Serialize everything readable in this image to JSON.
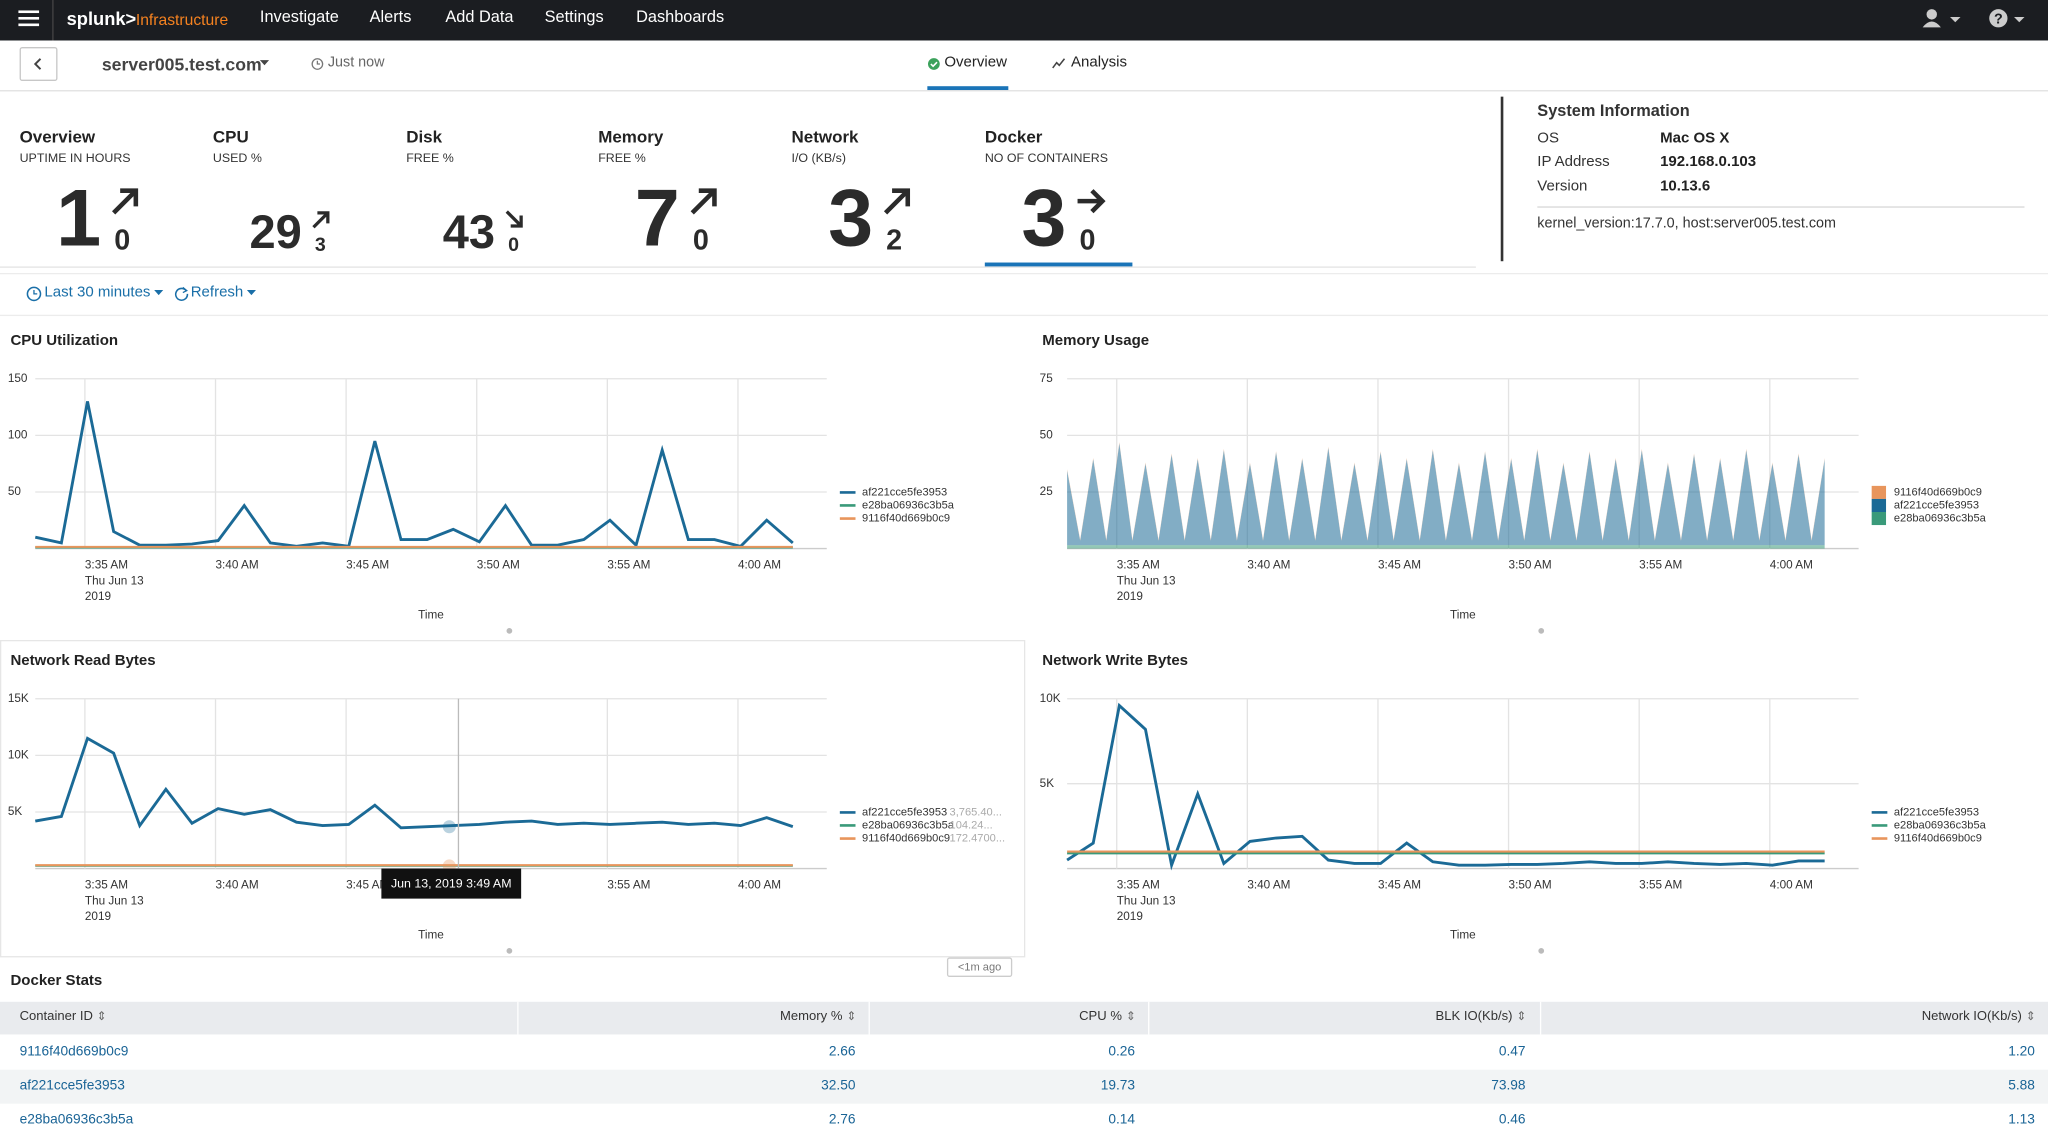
{
  "nav": {
    "logo": "splunk>",
    "product": "Infrastructure",
    "items": [
      "Investigate",
      "Alerts",
      "Add Data",
      "Settings",
      "Dashboards"
    ]
  },
  "header": {
    "host": "server005.test.com",
    "updated": "Just now",
    "tabs": [
      "Overview",
      "Analysis"
    ]
  },
  "kpis": [
    {
      "title": "Overview",
      "subtitle": "UPTIME IN HOURS",
      "value": 1,
      "delta": 0
    },
    {
      "title": "CPU",
      "subtitle": "USED %",
      "value": 29,
      "delta": 3
    },
    {
      "title": "Disk",
      "subtitle": "FREE %",
      "value": 43,
      "delta": 0
    },
    {
      "title": "Memory",
      "subtitle": "FREE %",
      "value": 7,
      "delta": 0
    },
    {
      "title": "Network",
      "subtitle": "I/O (KB/s)",
      "value": 3,
      "delta": 2
    },
    {
      "title": "Docker",
      "subtitle": "NO OF CONTAINERS",
      "value": 3,
      "delta": 0
    }
  ],
  "system_info": {
    "title": "System Information",
    "rows": [
      [
        "OS",
        "Mac OS X"
      ],
      [
        "IP Address",
        "192.168.0.103"
      ],
      [
        "Version",
        "10.13.6"
      ]
    ],
    "details": "kernel_version:17.7.0, host:server005.test.com"
  },
  "toolbar": {
    "time_range": "Last 30 minutes",
    "refresh": "Refresh"
  },
  "chart_data": [
    {
      "type": "line",
      "title": "CPU Utilization",
      "x_label": "Time",
      "x_sublabels": [
        "Thu Jun 13",
        "2019"
      ],
      "grid": true,
      "legend": "right",
      "x": [
        213.1,
        214.1,
        215.1,
        216.1,
        217.1,
        218.1,
        219.1,
        220.1,
        221.1,
        222.1,
        223.1,
        224.1,
        225.1,
        226.1,
        227.1,
        228.1,
        229.1,
        230.1,
        231.1,
        232.1,
        233.1,
        234.1,
        235.1,
        236.1,
        237.1,
        238.1,
        239.1,
        240.1,
        241.1,
        242.1
      ],
      "xlim": [
        213.1,
        243.4
      ],
      "xticks": [
        {
          "value": 215,
          "label": "3:35 AM"
        },
        {
          "value": 220,
          "label": "3:40 AM"
        },
        {
          "value": 225,
          "label": "3:45 AM"
        },
        {
          "value": 230,
          "label": "3:50 AM"
        },
        {
          "value": 235,
          "label": "3:55 AM"
        },
        {
          "value": 240,
          "label": "4:00 AM"
        }
      ],
      "ylim": [
        0,
        150
      ],
      "yticks": [
        50,
        100,
        150
      ],
      "series": [
        {
          "name": "af221cce5fe3953",
          "color": "#1b6a96",
          "values": [
            10,
            5,
            130,
            15,
            3,
            3,
            4,
            7,
            38,
            5,
            2,
            5,
            2,
            95,
            8,
            8,
            17,
            6,
            38,
            3,
            3,
            8,
            25,
            3,
            87,
            8,
            8,
            2,
            25,
            5
          ]
        },
        {
          "name": "e28ba06936c3b5a",
          "color": "#3a9a7a",
          "values": [
            1,
            1,
            1,
            1,
            1,
            1,
            1,
            1,
            1,
            1,
            1,
            1,
            1,
            1,
            1,
            1,
            1,
            1,
            1,
            1,
            1,
            1,
            1,
            1,
            1,
            1,
            1,
            1,
            1,
            1
          ]
        },
        {
          "name": "9116f40d669b0c9",
          "color": "#e8955c",
          "values": [
            1.5,
            1.5,
            1.5,
            1.5,
            1.5,
            1.5,
            1.5,
            1.5,
            1.5,
            1.5,
            1.5,
            1.5,
            1.5,
            1.5,
            1.5,
            1.5,
            1.5,
            1.5,
            1.5,
            1.5,
            1.5,
            1.5,
            1.5,
            1.5,
            1.5,
            1.5,
            1.5,
            1.5,
            1.5,
            1.5
          ]
        }
      ]
    },
    {
      "type": "area",
      "title": "Memory Usage",
      "x_label": "Time",
      "x_sublabels": [
        "Thu Jun 13",
        "2019"
      ],
      "grid": true,
      "legend": "right",
      "x": [
        213.1,
        213.6,
        214.1,
        214.6,
        215.1,
        215.6,
        216.1,
        216.6,
        217.1,
        217.6,
        218.1,
        218.6,
        219.1,
        219.6,
        220.1,
        220.6,
        221.1,
        221.6,
        222.1,
        222.6,
        223.1,
        223.6,
        224.1,
        224.6,
        225.1,
        225.6,
        226.1,
        226.6,
        227.1,
        227.6,
        228.1,
        228.6,
        229.1,
        229.6,
        230.1,
        230.6,
        231.1,
        231.6,
        232.1,
        232.6,
        233.1,
        233.6,
        234.1,
        234.6,
        235.1,
        235.6,
        236.1,
        236.6,
        237.1,
        237.6,
        238.1,
        238.6,
        239.1,
        239.6,
        240.1,
        240.6,
        241.1,
        241.6,
        242.1
      ],
      "xlim": [
        213.1,
        243.4
      ],
      "xticks": [
        {
          "value": 215,
          "label": "3:35 AM"
        },
        {
          "value": 220,
          "label": "3:40 AM"
        },
        {
          "value": 225,
          "label": "3:45 AM"
        },
        {
          "value": 230,
          "label": "3:50 AM"
        },
        {
          "value": 235,
          "label": "3:55 AM"
        },
        {
          "value": 240,
          "label": "4:00 AM"
        }
      ],
      "ylim": [
        0,
        75
      ],
      "yticks": [
        25,
        50,
        75
      ],
      "series": [
        {
          "name": "9116f40d669b0c9",
          "color": "#e8955c",
          "values": [
            0.5,
            0.5,
            0.5,
            0.5,
            0.5,
            0.5,
            0.5,
            0.5,
            0.5,
            0.5,
            0.5,
            0.5,
            0.5,
            0.5,
            0.5,
            0.5,
            0.5,
            0.5,
            0.5,
            0.5,
            0.5,
            0.5,
            0.5,
            0.5,
            0.5,
            0.5,
            0.5,
            0.5,
            0.5,
            0.5,
            0.5,
            0.5,
            0.5,
            0.5,
            0.5,
            0.5,
            0.5,
            0.5,
            0.5,
            0.5,
            0.5,
            0.5,
            0.5,
            0.5,
            0.5,
            0.5,
            0.5,
            0.5,
            0.5,
            0.5,
            0.5,
            0.5,
            0.5,
            0.5,
            0.5,
            0.5,
            0.5,
            0.5,
            0.5
          ]
        },
        {
          "name": "af221cce5fe3953",
          "color": "#1b6a96",
          "values": [
            33,
            2,
            38,
            2,
            45,
            2,
            36,
            2,
            40,
            2,
            38,
            2,
            42,
            2,
            36,
            2,
            41,
            2,
            38,
            2,
            43,
            2,
            36,
            2,
            41,
            2,
            38,
            2,
            42,
            2,
            36,
            2,
            41,
            2,
            38,
            2,
            42,
            2,
            36,
            2,
            41,
            2,
            38,
            2,
            42,
            2,
            36,
            2,
            40,
            2,
            38,
            2,
            42,
            2,
            36,
            2,
            40,
            2,
            38
          ]
        },
        {
          "name": "e28ba06936c3b5a",
          "color": "#3a9a7a",
          "values": [
            1.5,
            1.5,
            1.5,
            1.5,
            1.5,
            1.5,
            1.5,
            1.5,
            1.5,
            1.5,
            1.5,
            1.5,
            1.5,
            1.5,
            1.5,
            1.5,
            1.5,
            1.5,
            1.5,
            1.5,
            1.5,
            1.5,
            1.5,
            1.5,
            1.5,
            1.5,
            1.5,
            1.5,
            1.5,
            1.5,
            1.5,
            1.5,
            1.5,
            1.5,
            1.5,
            1.5,
            1.5,
            1.5,
            1.5,
            1.5,
            1.5,
            1.5,
            1.5,
            1.5,
            1.5,
            1.5,
            1.5,
            1.5,
            1.5,
            1.5,
            1.5,
            1.5,
            1.5,
            1.5,
            1.5,
            1.5,
            1.5,
            1.5,
            1.5
          ]
        }
      ]
    },
    {
      "type": "line",
      "title": "Network Read Bytes",
      "x_label": "Time",
      "x_sublabels": [
        "Thu Jun 13",
        "2019"
      ],
      "grid": true,
      "legend": "right",
      "tooltip": "Jun 13, 2019 3:49 AM",
      "legend_values": [
        "3,765.40...",
        "104.24...",
        "172.4700..."
      ],
      "x": [
        213.1,
        214.1,
        215.1,
        216.1,
        217.1,
        218.1,
        219.1,
        220.1,
        221.1,
        222.1,
        223.1,
        224.1,
        225.1,
        226.1,
        227.1,
        228.1,
        229.1,
        230.1,
        231.1,
        232.1,
        233.1,
        234.1,
        235.1,
        236.1,
        237.1,
        238.1,
        239.1,
        240.1,
        241.1,
        242.1
      ],
      "xlim": [
        213.1,
        243.4
      ],
      "xticks": [
        {
          "value": 215,
          "label": "3:35 AM"
        },
        {
          "value": 220,
          "label": "3:40 AM"
        },
        {
          "value": 225,
          "label": "3:45 AM"
        },
        {
          "value": 235,
          "label": "3:55 AM"
        },
        {
          "value": 240,
          "label": "4:00 AM"
        }
      ],
      "ylim": [
        0,
        15000
      ],
      "yticks": [
        {
          "value": 5000,
          "label": "5K"
        },
        {
          "value": 10000,
          "label": "10K"
        },
        {
          "value": 15000,
          "label": "15K"
        }
      ],
      "series": [
        {
          "name": "af221cce5fe3953",
          "color": "#1b6a96",
          "values": [
            4200,
            4600,
            11500,
            10200,
            3800,
            7000,
            4000,
            5300,
            4800,
            5200,
            4100,
            3800,
            3900,
            5600,
            3600,
            3700,
            3800,
            3900,
            4100,
            4200,
            3900,
            4000,
            3900,
            4000,
            4100,
            3900,
            4000,
            3800,
            4500,
            3700
          ]
        },
        {
          "name": "e28ba06936c3b5a",
          "color": "#3a9a7a",
          "values": [
            250,
            250,
            250,
            250,
            250,
            250,
            250,
            250,
            250,
            250,
            250,
            250,
            250,
            250,
            250,
            250,
            250,
            250,
            250,
            250,
            250,
            250,
            250,
            250,
            250,
            250,
            250,
            250,
            250,
            250
          ]
        },
        {
          "name": "9116f40d669b0c9",
          "color": "#e8955c",
          "values": [
            300,
            300,
            300,
            300,
            300,
            300,
            300,
            300,
            300,
            300,
            300,
            300,
            300,
            300,
            300,
            300,
            300,
            300,
            300,
            300,
            300,
            300,
            300,
            300,
            300,
            300,
            300,
            300,
            300,
            300
          ]
        }
      ]
    },
    {
      "type": "line",
      "title": "Network Write Bytes",
      "x_label": "Time",
      "x_sublabels": [
        "Thu Jun 13",
        "2019"
      ],
      "grid": true,
      "legend": "right",
      "x": [
        213.1,
        214.1,
        215.1,
        216.1,
        217.1,
        218.1,
        219.1,
        220.1,
        221.1,
        222.1,
        223.1,
        224.1,
        225.1,
        226.1,
        227.1,
        228.1,
        229.1,
        230.1,
        231.1,
        232.1,
        233.1,
        234.1,
        235.1,
        236.1,
        237.1,
        238.1,
        239.1,
        240.1,
        241.1,
        242.1
      ],
      "xlim": [
        213.1,
        243.4
      ],
      "xticks": [
        {
          "value": 215,
          "label": "3:35 AM"
        },
        {
          "value": 220,
          "label": "3:40 AM"
        },
        {
          "value": 225,
          "label": "3:45 AM"
        },
        {
          "value": 230,
          "label": "3:50 AM"
        },
        {
          "value": 235,
          "label": "3:55 AM"
        },
        {
          "value": 240,
          "label": "4:00 AM"
        }
      ],
      "ylim": [
        0,
        10000
      ],
      "yticks": [
        {
          "value": 5000,
          "label": "5K"
        },
        {
          "value": 10000,
          "label": "10K"
        }
      ],
      "series": [
        {
          "name": "af221cce5fe3953",
          "color": "#1b6a96",
          "values": [
            500,
            1500,
            9600,
            8200,
            200,
            4400,
            300,
            1600,
            1800,
            1900,
            500,
            300,
            300,
            1500,
            400,
            200,
            200,
            250,
            250,
            300,
            400,
            300,
            300,
            400,
            300,
            250,
            300,
            200,
            450,
            450
          ]
        },
        {
          "name": "e28ba06936c3b5a",
          "color": "#3a9a7a",
          "values": [
            900,
            900,
            900,
            900,
            900,
            900,
            900,
            900,
            900,
            900,
            900,
            900,
            900,
            900,
            900,
            900,
            900,
            900,
            900,
            900,
            900,
            900,
            900,
            900,
            900,
            900,
            900,
            900,
            900,
            900
          ]
        },
        {
          "name": "9116f40d669b0c9",
          "color": "#e8955c",
          "values": [
            1000,
            1000,
            1000,
            1000,
            1000,
            1000,
            1000,
            1000,
            1000,
            1000,
            1000,
            1000,
            1000,
            1000,
            1000,
            1000,
            1000,
            1000,
            1000,
            1000,
            1000,
            1000,
            1000,
            1000,
            1000,
            1000,
            1000,
            1000,
            1000,
            1000
          ]
        }
      ]
    }
  ],
  "freshness": "<1m ago",
  "docker_stats": {
    "title": "Docker Stats",
    "columns": [
      "Container ID",
      "Memory %",
      "CPU %",
      "BLK IO(Kb/s)",
      "Network IO(Kb/s)"
    ],
    "rows": [
      [
        "9116f40d669b0c9",
        "2.66",
        "0.26",
        "0.47",
        "1.20"
      ],
      [
        "af221cce5fe3953",
        "32.50",
        "19.73",
        "73.98",
        "5.88"
      ],
      [
        "e28ba06936c3b5a",
        "2.76",
        "0.14",
        "0.46",
        "1.13"
      ]
    ]
  }
}
